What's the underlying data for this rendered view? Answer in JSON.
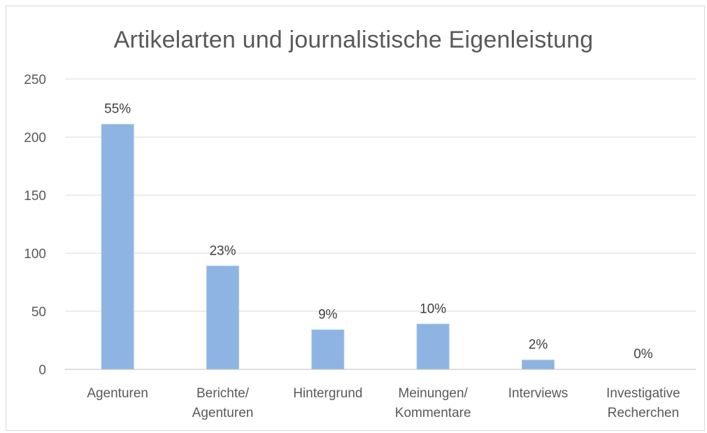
{
  "chart_data": {
    "type": "bar",
    "title": "Artikelarten und journalistische Eigenleistung",
    "xlabel": "",
    "ylabel": "",
    "ylim": [
      0,
      250
    ],
    "yticks": [
      0,
      50,
      100,
      150,
      200,
      250
    ],
    "grid": true,
    "legend": "none",
    "bar_color": "#8db4e2",
    "bar_edge_color": "#a9c6ea",
    "categories": [
      [
        "Agenturen"
      ],
      [
        "Berichte/",
        "Agenturen"
      ],
      [
        "Hintergrund"
      ],
      [
        "Meinungen/",
        "Kommentare"
      ],
      [
        "Interviews"
      ],
      [
        "Investigative",
        "Recherchen"
      ]
    ],
    "values": [
      211,
      89,
      34,
      39,
      8,
      0
    ],
    "data_labels": [
      "55%",
      "23%",
      "9%",
      "10%",
      "2%",
      "0%"
    ]
  }
}
